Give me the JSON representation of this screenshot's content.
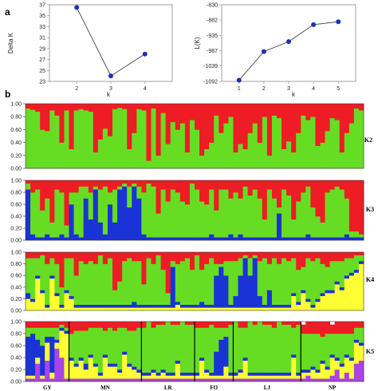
{
  "panel_labels": {
    "a": "a",
    "b": "b"
  },
  "colors": {
    "cluster_red": "#ee1c25",
    "cluster_green": "#66dd22",
    "cluster_blue": "#1a33d6",
    "cluster_yellow": "#ffff33",
    "cluster_purple": "#aa44e8",
    "marker": "#1d31b8"
  },
  "chart_data": [
    {
      "type": "line",
      "title": "",
      "xlabel": "k",
      "ylabel": "Delta K",
      "x": [
        2,
        3,
        4
      ],
      "y": [
        36.5,
        24.0,
        28.0
      ],
      "xticks": [
        "2",
        "3",
        "4"
      ],
      "yticks": [
        "23",
        "25",
        "27",
        "29",
        "31",
        "33",
        "35",
        "37"
      ],
      "ylim": [
        23,
        37
      ],
      "grid": false
    },
    {
      "type": "line",
      "title": "",
      "xlabel": "k",
      "ylabel": "L(K)",
      "x": [
        1,
        2,
        3,
        4,
        5
      ],
      "y": [
        -1088,
        -990,
        -956,
        -898,
        -888
      ],
      "xticks": [
        "1",
        "2",
        "3",
        "4",
        "5"
      ],
      "yticks": [
        "-830",
        "-882",
        "-935",
        "-987",
        "-1039",
        "-1092"
      ],
      "ylim": [
        -1092,
        -830
      ],
      "grid": false
    },
    {
      "type": "bar",
      "stacked": true,
      "title": "",
      "label": "K2",
      "yticks": [
        "0.00",
        "0.20",
        "0.40",
        "0.60",
        "0.80",
        "1.00"
      ],
      "ylim": [
        0,
        1
      ],
      "series_colors": [
        "#66dd22",
        "#ee1c25"
      ],
      "values": [
        [
          0.93,
          0.91,
          0.88,
          0.6,
          0.58,
          0.9,
          0.82,
          0.4,
          0.9,
          0.3,
          0.9,
          0.92,
          0.9,
          0.88,
          0.25,
          0.45,
          0.62,
          0.5,
          0.92,
          0.94,
          0.92,
          0.3,
          0.55,
          0.92,
          0.9,
          0.12,
          0.93,
          0.2,
          0.86,
          0.38,
          0.72,
          0.6,
          0.7,
          0.25,
          0.75,
          0.6,
          0.2,
          0.3,
          0.4,
          0.82,
          0.55,
          0.7,
          0.8,
          0.25,
          0.38,
          0.3,
          0.55,
          0.7,
          0.4,
          0.8,
          0.2,
          0.82,
          0.78,
          0.3,
          0.42,
          0.25,
          0.55,
          0.82,
          0.75,
          0.8,
          0.35,
          0.4,
          0.58,
          0.78,
          0.75,
          0.25,
          0.55,
          0.7,
          0.93,
          0.9
        ],
        [
          0.07,
          0.09,
          0.12,
          0.4,
          0.42,
          0.1,
          0.18,
          0.6,
          0.1,
          0.7,
          0.1,
          0.08,
          0.1,
          0.12,
          0.75,
          0.55,
          0.38,
          0.5,
          0.08,
          0.06,
          0.08,
          0.7,
          0.45,
          0.08,
          0.1,
          0.88,
          0.07,
          0.8,
          0.14,
          0.62,
          0.28,
          0.4,
          0.3,
          0.75,
          0.25,
          0.4,
          0.8,
          0.7,
          0.6,
          0.18,
          0.45,
          0.3,
          0.2,
          0.75,
          0.62,
          0.7,
          0.45,
          0.3,
          0.6,
          0.2,
          0.8,
          0.18,
          0.22,
          0.7,
          0.58,
          0.75,
          0.45,
          0.18,
          0.25,
          0.2,
          0.65,
          0.6,
          0.42,
          0.22,
          0.25,
          0.75,
          0.45,
          0.3,
          0.07,
          0.1
        ]
      ]
    },
    {
      "type": "bar",
      "stacked": true,
      "title": "",
      "label": "K3",
      "yticks": [
        "0.00",
        "0.20",
        "0.40",
        "0.60",
        "0.80",
        "1.00"
      ],
      "ylim": [
        0,
        1
      ],
      "series_colors": [
        "#1a33d6",
        "#66dd22",
        "#ee1c25"
      ],
      "values": [
        [
          0.85,
          0.1,
          0.05,
          0.05,
          0.1,
          0.05,
          0.05,
          0.1,
          0.05,
          0.6,
          0.1,
          0.05,
          0.7,
          0.35,
          0.85,
          0.3,
          0.1,
          0.6,
          0.3,
          0.85,
          0.9,
          0.55,
          0.9,
          0.7,
          0.1,
          0.05,
          0.05,
          0.05,
          0.05,
          0.05,
          0.05,
          0.05,
          0.05,
          0.05,
          0.05,
          0.05,
          0.05,
          0.05,
          0.1,
          0.05,
          0.05,
          0.05,
          0.1,
          0.05,
          0.1,
          0.05,
          0.05,
          0.05,
          0.05,
          0.05,
          0.05,
          0.05,
          0.45,
          0.05,
          0.05,
          0.05,
          0.05,
          0.05,
          0.1,
          0.05,
          0.05,
          0.05,
          0.05,
          0.05,
          0.05,
          0.05,
          0.1,
          0.05,
          0.05,
          0.05
        ],
        [
          0.1,
          0.7,
          0.8,
          0.45,
          0.6,
          0.25,
          0.8,
          0.7,
          0.2,
          0.2,
          0.7,
          0.85,
          0.2,
          0.45,
          0.05,
          0.55,
          0.8,
          0.2,
          0.55,
          0.05,
          0.05,
          0.35,
          0.05,
          0.2,
          0.7,
          0.9,
          0.85,
          0.4,
          0.8,
          0.6,
          0.8,
          0.75,
          0.6,
          0.55,
          0.9,
          0.8,
          0.6,
          0.55,
          0.75,
          0.45,
          0.8,
          0.8,
          0.6,
          0.75,
          0.6,
          0.85,
          0.7,
          0.8,
          0.65,
          0.3,
          0.8,
          0.65,
          0.1,
          0.8,
          0.7,
          0.3,
          0.6,
          0.75,
          0.8,
          0.5,
          0.35,
          0.25,
          0.75,
          0.8,
          0.85,
          0.8,
          0.6,
          0.1,
          0.1,
          0.05
        ],
        [
          0.05,
          0.2,
          0.15,
          0.5,
          0.3,
          0.7,
          0.15,
          0.2,
          0.75,
          0.2,
          0.2,
          0.1,
          0.1,
          0.2,
          0.1,
          0.15,
          0.1,
          0.2,
          0.15,
          0.1,
          0.05,
          0.1,
          0.05,
          0.1,
          0.2,
          0.05,
          0.1,
          0.55,
          0.15,
          0.35,
          0.15,
          0.2,
          0.35,
          0.4,
          0.05,
          0.15,
          0.35,
          0.4,
          0.15,
          0.5,
          0.15,
          0.15,
          0.3,
          0.2,
          0.3,
          0.1,
          0.25,
          0.15,
          0.3,
          0.65,
          0.15,
          0.3,
          0.45,
          0.15,
          0.25,
          0.65,
          0.35,
          0.2,
          0.1,
          0.45,
          0.6,
          0.7,
          0.2,
          0.15,
          0.1,
          0.15,
          0.3,
          0.85,
          0.85,
          0.9
        ]
      ]
    },
    {
      "type": "bar",
      "stacked": true,
      "title": "",
      "label": "K4",
      "yticks": [
        "0.00",
        "0.20",
        "0.40",
        "0.60",
        "0.80",
        "1.00"
      ],
      "ylim": [
        0,
        1
      ],
      "series_colors": [
        "#ffff33",
        "#1a33d6",
        "#66dd22",
        "#ee1c25"
      ],
      "values": [
        [
          0.2,
          0.15,
          0.55,
          0.3,
          0.05,
          0.55,
          0.25,
          0.05,
          0.3,
          0.2,
          0.05,
          0.05,
          0.05,
          0.05,
          0.05,
          0.05,
          0.05,
          0.05,
          0.05,
          0.05,
          0.05,
          0.05,
          0.05,
          0.05,
          0.05,
          0.05,
          0.05,
          0.05,
          0.05,
          0.05,
          0.05,
          0.1,
          0.05,
          0.05,
          0.05,
          0.05,
          0.05,
          0.05,
          0.05,
          0.05,
          0.05,
          0.05,
          0.05,
          0.05,
          0.05,
          0.05,
          0.05,
          0.05,
          0.05,
          0.05,
          0.05,
          0.05,
          0.05,
          0.05,
          0.05,
          0.25,
          0.1,
          0.3,
          0.15,
          0.05,
          0.15,
          0.25,
          0.3,
          0.3,
          0.45,
          0.35,
          0.55,
          0.6,
          0.65,
          0.8
        ],
        [
          0.1,
          0.05,
          0.05,
          0.05,
          0.05,
          0.05,
          0.05,
          0.05,
          0.05,
          0.05,
          0.05,
          0.05,
          0.05,
          0.05,
          0.05,
          0.05,
          0.05,
          0.05,
          0.05,
          0.05,
          0.05,
          0.05,
          0.1,
          0.05,
          0.05,
          0.05,
          0.05,
          0.05,
          0.05,
          0.05,
          0.7,
          0.05,
          0.05,
          0.05,
          0.05,
          0.05,
          0.1,
          0.05,
          0.05,
          0.55,
          0.7,
          0.55,
          0.05,
          0.2,
          0.55,
          0.85,
          0.55,
          0.85,
          0.2,
          0.05,
          0.3,
          0.05,
          0.05,
          0.05,
          0.05,
          0.05,
          0.05,
          0.05,
          0.05,
          0.05,
          0.05,
          0.05,
          0.05,
          0.05,
          0.05,
          0.05,
          0.05,
          0.05,
          0.05,
          0.05
        ],
        [
          0.6,
          0.7,
          0.3,
          0.6,
          0.7,
          0.3,
          0.5,
          0.3,
          0.55,
          0.65,
          0.5,
          0.75,
          0.7,
          0.75,
          0.7,
          0.85,
          0.7,
          0.8,
          0.25,
          0.4,
          0.75,
          0.8,
          0.7,
          0.75,
          0.35,
          0.8,
          0.7,
          0.85,
          0.6,
          0.2,
          0.1,
          0.65,
          0.75,
          0.8,
          0.6,
          0.85,
          0.55,
          0.7,
          0.8,
          0.2,
          0.05,
          0.25,
          0.75,
          0.6,
          0.3,
          0.05,
          0.3,
          0.05,
          0.6,
          0.8,
          0.45,
          0.8,
          0.7,
          0.8,
          0.75,
          0.6,
          0.55,
          0.4,
          0.7,
          0.75,
          0.7,
          0.5,
          0.4,
          0.5,
          0.35,
          0.45,
          0.3,
          0.25,
          0.25,
          0.1
        ],
        [
          0.1,
          0.1,
          0.1,
          0.05,
          0.2,
          0.1,
          0.2,
          0.6,
          0.1,
          0.1,
          0.4,
          0.15,
          0.2,
          0.15,
          0.2,
          0.05,
          0.2,
          0.1,
          0.65,
          0.5,
          0.15,
          0.1,
          0.15,
          0.15,
          0.55,
          0.1,
          0.2,
          0.05,
          0.3,
          0.7,
          0.15,
          0.2,
          0.15,
          0.1,
          0.3,
          0.05,
          0.3,
          0.2,
          0.1,
          0.2,
          0.2,
          0.15,
          0.15,
          0.15,
          0.1,
          0.05,
          0.1,
          0.05,
          0.15,
          0.1,
          0.2,
          0.1,
          0.2,
          0.1,
          0.15,
          0.1,
          0.3,
          0.25,
          0.1,
          0.15,
          0.1,
          0.2,
          0.25,
          0.15,
          0.15,
          0.15,
          0.1,
          0.1,
          0.05,
          0.05
        ]
      ]
    },
    {
      "type": "bar",
      "stacked": true,
      "title": "",
      "label": "K5",
      "yticks": [
        "0.00",
        "0.20",
        "0.40",
        "0.60",
        "0.80",
        "1.00"
      ],
      "ylim": [
        0,
        1
      ],
      "populations": [
        "GY",
        "MN",
        "LR",
        "FO",
        "LJ",
        "NP"
      ],
      "population_sizes": [
        9,
        15,
        11,
        8,
        14,
        13
      ],
      "series_colors": [
        "#aa44e8",
        "#ffff33",
        "#1a33d6",
        "#66dd22",
        "#ee1c25"
      ],
      "values": [
        [
          0.05,
          0.05,
          0.3,
          0.05,
          0.35,
          0.05,
          0.55,
          0.4,
          0.05,
          0.05,
          0.05,
          0.05,
          0.05,
          0.05,
          0.05,
          0.05,
          0.05,
          0.05,
          0.05,
          0.05,
          0.05,
          0.05,
          0.05,
          0.05,
          0.05,
          0.05,
          0.05,
          0.05,
          0.05,
          0.05,
          0.05,
          0.05,
          0.05,
          0.05,
          0.05,
          0.05,
          0.05,
          0.05,
          0.05,
          0.05,
          0.05,
          0.05,
          0.05,
          0.05,
          0.05,
          0.05,
          0.05,
          0.05,
          0.05,
          0.05,
          0.05,
          0.05,
          0.05,
          0.05,
          0.05,
          0.05,
          0.05,
          0.05,
          0.1,
          0.05,
          0.05,
          0.05,
          0.05,
          0.1,
          0.2,
          0.05,
          0.15,
          0.05,
          0.3,
          0.35
        ],
        [
          0.05,
          0.05,
          0.1,
          0.05,
          0.3,
          0.1,
          0.1,
          0.45,
          0.75,
          0.3,
          0.2,
          0.3,
          0.15,
          0.35,
          0.2,
          0.05,
          0.35,
          0.2,
          0.2,
          0.1,
          0.4,
          0.2,
          0.15,
          0.1,
          0.05,
          0.05,
          0.1,
          0.05,
          0.1,
          0.05,
          0.05,
          0.25,
          0.05,
          0.05,
          0.05,
          0.05,
          0.3,
          0.1,
          0.05,
          0.05,
          0.05,
          0.2,
          0.05,
          0.05,
          0.1,
          0.3,
          0.05,
          0.05,
          0.05,
          0.05,
          0.05,
          0.05,
          0.05,
          0.05,
          0.05,
          0.35,
          0.05,
          0.1,
          0.05,
          0.15,
          0.1,
          0.25,
          0.15,
          0.3,
          0.15,
          0.2,
          0.25,
          0.3,
          0.35,
          0.25
        ],
        [
          0.65,
          0.7,
          0.3,
          0.5,
          0.1,
          0.6,
          0.05,
          0.05,
          0.05,
          0.05,
          0.05,
          0.05,
          0.1,
          0.05,
          0.05,
          0.05,
          0.05,
          0.05,
          0.05,
          0.05,
          0.05,
          0.05,
          0.05,
          0.05,
          0.05,
          0.05,
          0.05,
          0.05,
          0.05,
          0.05,
          0.05,
          0.05,
          0.05,
          0.05,
          0.05,
          0.05,
          0.05,
          0.05,
          0.05,
          0.4,
          0.6,
          0.5,
          0.05,
          0.05,
          0.05,
          0.05,
          0.05,
          0.05,
          0.05,
          0.05,
          0.05,
          0.05,
          0.05,
          0.05,
          0.05,
          0.05,
          0.05,
          0.05,
          0.05,
          0.05,
          0.05,
          0.05,
          0.05,
          0.05,
          0.05,
          0.05,
          0.05,
          0.05,
          0.05,
          0.05
        ],
        [
          0.15,
          0.1,
          0.2,
          0.3,
          0.15,
          0.15,
          0.2,
          0.05,
          0.05,
          0.4,
          0.55,
          0.45,
          0.55,
          0.45,
          0.6,
          0.75,
          0.4,
          0.6,
          0.55,
          0.7,
          0.4,
          0.55,
          0.6,
          0.7,
          0.75,
          0.85,
          0.7,
          0.8,
          0.75,
          0.85,
          0.8,
          0.6,
          0.85,
          0.8,
          0.8,
          0.75,
          0.5,
          0.7,
          0.8,
          0.4,
          0.2,
          0.15,
          0.8,
          0.85,
          0.7,
          0.5,
          0.85,
          0.8,
          0.85,
          0.8,
          0.8,
          0.75,
          0.85,
          0.8,
          0.8,
          0.45,
          0.8,
          0.6,
          0.6,
          0.55,
          0.6,
          0.4,
          0.55,
          0.35,
          0.4,
          0.5,
          0.35,
          0.4,
          0.2,
          0.25
        ],
        [
          0.1,
          0.1,
          0.1,
          0.1,
          0.1,
          0.1,
          0.1,
          0.05,
          0.1,
          0.2,
          0.15,
          0.15,
          0.15,
          0.1,
          0.1,
          0.1,
          0.15,
          0.1,
          0.15,
          0.1,
          0.1,
          0.15,
          0.15,
          0.1,
          0.1,
          0.0,
          0.1,
          0.05,
          0.05,
          0.0,
          0.05,
          0.05,
          0.0,
          0.05,
          0.05,
          0.1,
          0.1,
          0.1,
          0.05,
          0.1,
          0.1,
          0.1,
          0.05,
          0.0,
          0.1,
          0.1,
          0.0,
          0.05,
          0.0,
          0.05,
          0.05,
          0.1,
          0.0,
          0.05,
          0.05,
          0.1,
          0.05,
          0.15,
          0.2,
          0.2,
          0.2,
          0.25,
          0.2,
          0.15,
          0.2,
          0.2,
          0.2,
          0.2,
          0.1,
          0.1
        ]
      ]
    }
  ]
}
